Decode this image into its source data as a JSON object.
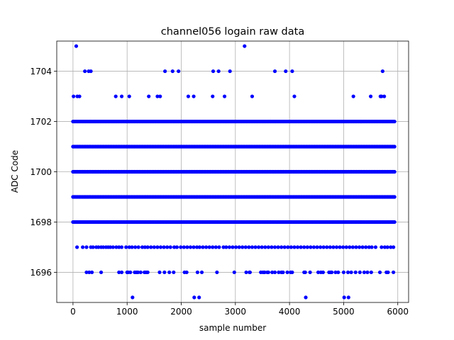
{
  "chart_data": {
    "type": "scatter",
    "title": "channel056 logain raw data",
    "xlabel": "sample number",
    "ylabel": "ADC Code",
    "xlim": [
      -300,
      6200
    ],
    "ylim": [
      1694.8,
      1705.2
    ],
    "xticks": [
      0,
      1000,
      2000,
      3000,
      4000,
      5000,
      6000
    ],
    "xtick_labels": [
      "0",
      "1000",
      "2000",
      "3000",
      "4000",
      "5000",
      "6000"
    ],
    "yticks": [
      1696,
      1698,
      1700,
      1702,
      1704
    ],
    "ytick_labels": [
      "1696",
      "1698",
      "1700",
      "1702",
      "1704"
    ],
    "grid": true,
    "marker_color": "#0000ff",
    "series": [
      {
        "dense_levels": [
          {
            "y": 1698,
            "x_range": [
              0,
              5940
            ]
          },
          {
            "y": 1699,
            "x_range": [
              0,
              5940
            ]
          },
          {
            "y": 1700,
            "x_range": [
              0,
              5940
            ]
          },
          {
            "y": 1701,
            "x_range": [
              0,
              5940
            ]
          },
          {
            "y": 1702,
            "x_range": [
              0,
              5940
            ]
          }
        ],
        "level_1697_x": [
          75,
          180,
          250,
          330,
          370,
          430,
          470,
          520,
          560,
          610,
          650,
          690,
          740,
          800,
          850,
          900,
          980,
          1040,
          1090,
          1150,
          1210,
          1280,
          1330,
          1380,
          1440,
          1500,
          1560,
          1620,
          1680,
          1740,
          1800,
          1870,
          1920,
          1990,
          2050,
          2110,
          2170,
          2230,
          2290,
          2340,
          2400,
          2460,
          2520,
          2580,
          2640,
          2700,
          2780,
          2830,
          2890,
          2950,
          3010,
          3070,
          3130,
          3190,
          3250,
          3310,
          3370,
          3430,
          3490,
          3550,
          3610,
          3670,
          3730,
          3790,
          3850,
          3910,
          3970,
          4030,
          4090,
          4150,
          4210,
          4270,
          4330,
          4390,
          4450,
          4510,
          4570,
          4630,
          4690,
          4750,
          4810,
          4870,
          4930,
          4990,
          5050,
          5110,
          5170,
          5230,
          5290,
          5350,
          5410,
          5470,
          5520,
          5590,
          5700,
          5760,
          5810,
          5870,
          5920
        ],
        "level_1696_x": [
          250,
          300,
          350,
          520,
          850,
          900,
          1000,
          1020,
          1060,
          1140,
          1170,
          1200,
          1250,
          1320,
          1350,
          1380,
          1600,
          1690,
          1780,
          1860,
          2060,
          2100,
          2300,
          2380,
          2660,
          2980,
          3200,
          3260,
          3270,
          3470,
          3510,
          3540,
          3590,
          3610,
          3680,
          3730,
          3800,
          3850,
          3880,
          3960,
          4020,
          4050,
          4270,
          4290,
          4380,
          4530,
          4580,
          4620,
          4730,
          4760,
          4780,
          4850,
          4900,
          5000,
          5080,
          5140,
          5220,
          5300,
          5380,
          5440,
          5510,
          5670,
          5790,
          5820,
          5920
        ],
        "level_1695_x": [
          1100,
          2240,
          2330,
          4300,
          5010,
          5090
        ],
        "level_1703_x": [
          10,
          80,
          120,
          790,
          900,
          1040,
          1400,
          1560,
          1610,
          2130,
          2230,
          2580,
          2800,
          3310,
          4090,
          5180,
          5500,
          5680,
          5700,
          5750
        ],
        "level_1704_x": [
          220,
          290,
          330,
          1700,
          1840,
          1950,
          2590,
          2690,
          2900,
          3730,
          3930,
          4050,
          5720
        ],
        "level_1705_x": [
          60,
          3170
        ]
      }
    ]
  }
}
